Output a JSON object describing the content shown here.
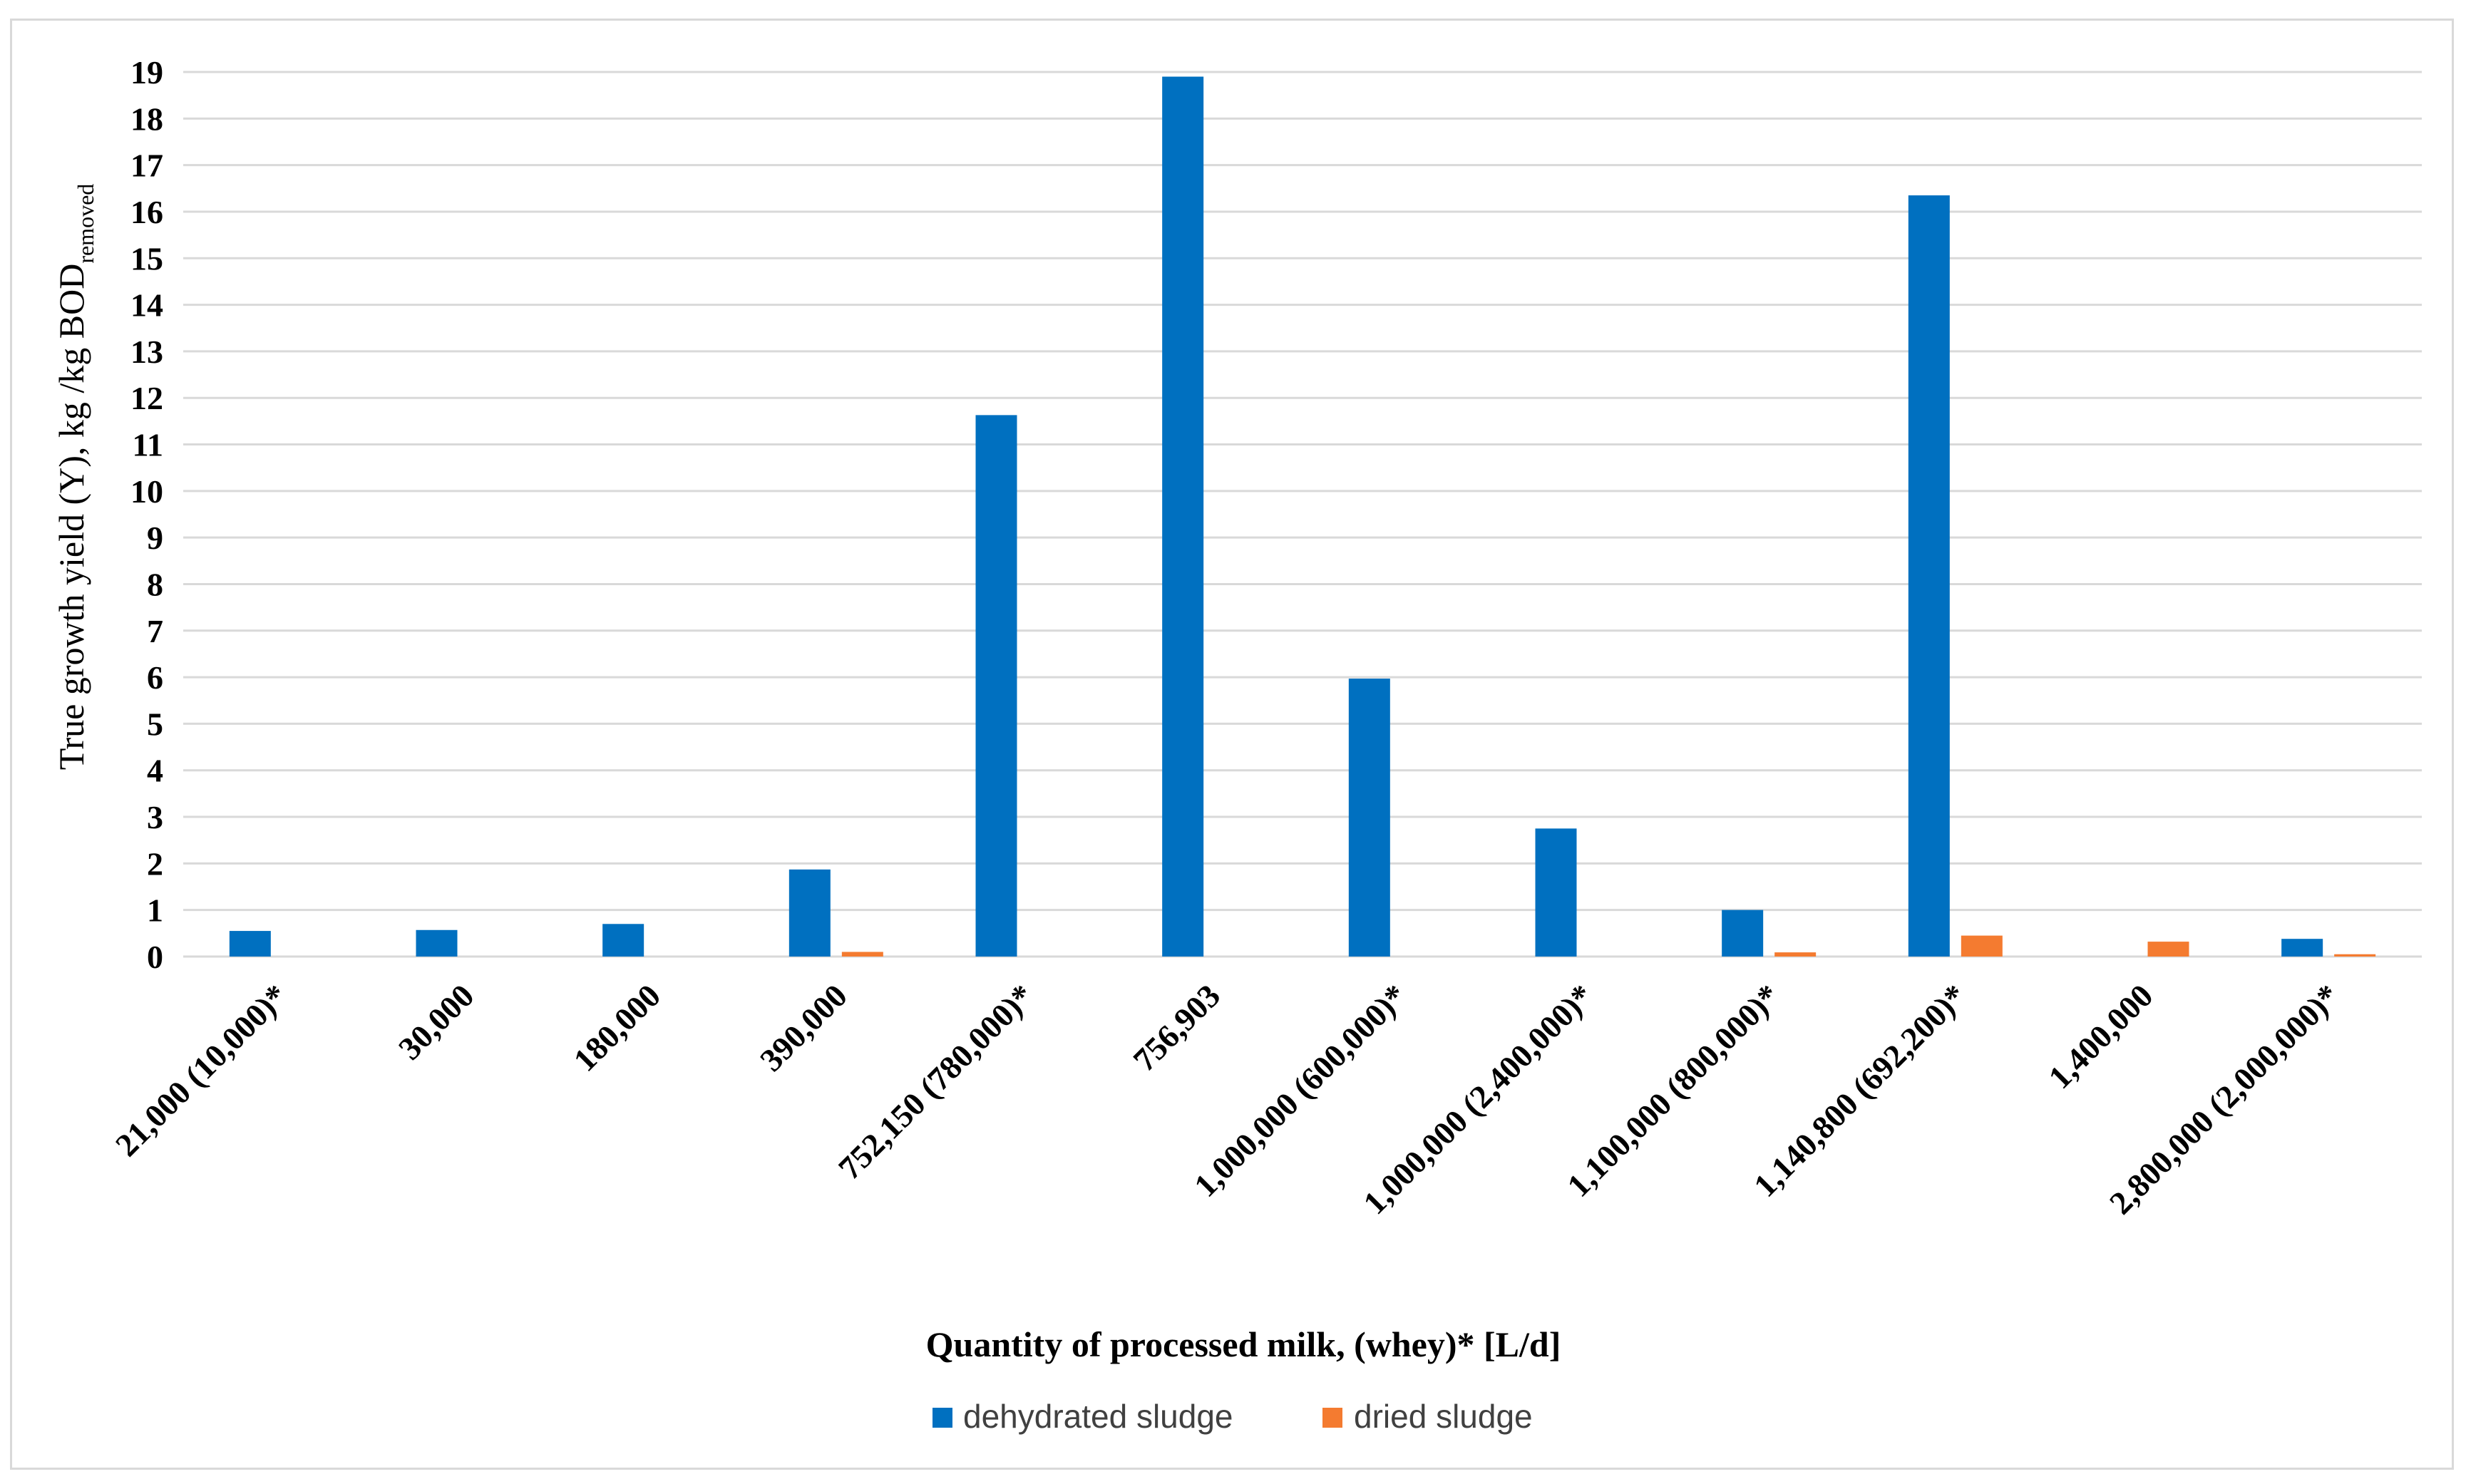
{
  "chart_data": {
    "type": "bar",
    "categories": [
      "21,000 (10,000)*",
      "30,000",
      "180,000",
      "390,000",
      "752,150 (780,000)*",
      "756,903",
      "1,000,000 (600,000)*",
      "1,000,000 (2,400,000)*",
      "1,100,000 (800,000)*",
      "1,140,800 (692,200)*",
      "1,400,000",
      "2,800,000 (2,000,000)*"
    ],
    "series": [
      {
        "name": "dehydrated sludge",
        "color": "#0070c0",
        "values": [
          0.55,
          0.57,
          0.7,
          1.87,
          11.63,
          18.9,
          5.97,
          2.75,
          1.0,
          16.35,
          0,
          0.38
        ]
      },
      {
        "name": "dried sludge",
        "color": "#f47b30",
        "values": [
          0,
          0,
          0,
          0.1,
          0,
          0,
          0,
          0,
          0.09,
          0.45,
          0.32,
          0.05
        ]
      }
    ],
    "ylim": [
      0,
      19
    ],
    "yticks": [
      0,
      1,
      2,
      3,
      4,
      5,
      6,
      7,
      8,
      9,
      10,
      11,
      12,
      13,
      14,
      15,
      16,
      17,
      18,
      19
    ],
    "grid": true,
    "legend_position": "bottom",
    "ylabel_main": "True growth yield (Y), kg /kg BOD",
    "ylabel_sub": "removed",
    "xlabel": "Quantity of processed milk, (whey)* [L/d]",
    "title": ""
  }
}
